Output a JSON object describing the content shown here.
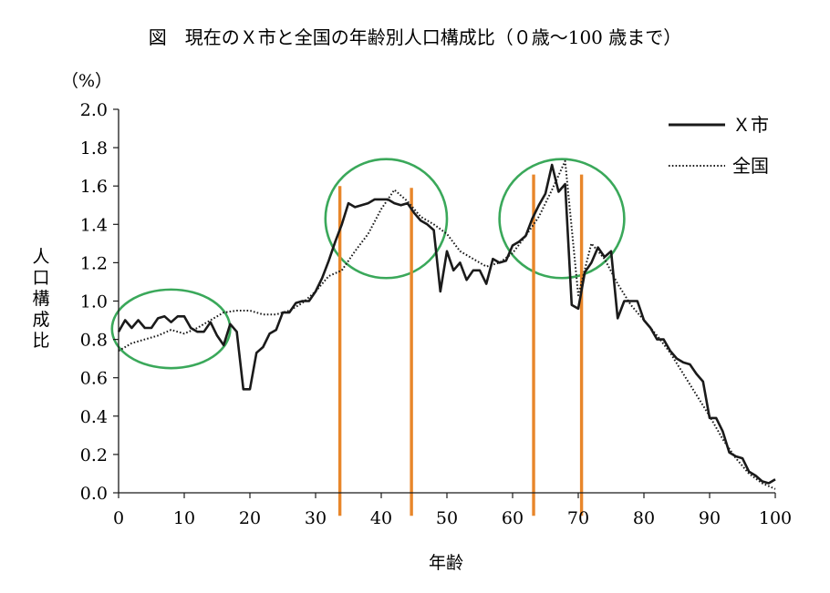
{
  "chart_data": {
    "type": "line",
    "title": "図　現在のＸ市と全国の年齢別人口構成比（０歳〜100 歳まで）",
    "xlabel": "年齢",
    "ylabel": "人口構成比",
    "yunit": "（%）",
    "xlim": [
      0,
      100
    ],
    "ylim": [
      0,
      2.0
    ],
    "xticks": [
      "0",
      "10",
      "20",
      "30",
      "40",
      "50",
      "60",
      "70",
      "80",
      "90",
      "100"
    ],
    "yticks": [
      "0.0",
      "0.2",
      "0.4",
      "0.6",
      "0.8",
      "1.0",
      "1.2",
      "1.4",
      "1.6",
      "1.8",
      "2.0"
    ],
    "grid": false,
    "legend_position": "top-right",
    "series": [
      {
        "name": "Ｘ市",
        "style": "solid",
        "color": "#1a1a1a",
        "x": [
          0,
          1,
          2,
          3,
          4,
          5,
          6,
          7,
          8,
          9,
          10,
          11,
          12,
          13,
          14,
          15,
          16,
          17,
          18,
          19,
          20,
          21,
          22,
          23,
          24,
          25,
          26,
          27,
          28,
          29,
          30,
          31,
          32,
          33,
          34,
          35,
          36,
          37,
          38,
          39,
          40,
          41,
          42,
          43,
          44,
          45,
          46,
          47,
          48,
          49,
          50,
          51,
          52,
          53,
          54,
          55,
          56,
          57,
          58,
          59,
          60,
          61,
          62,
          63,
          64,
          65,
          66,
          67,
          68,
          69,
          70,
          71,
          72,
          73,
          74,
          75,
          76,
          77,
          78,
          79,
          80,
          81,
          82,
          83,
          84,
          85,
          86,
          87,
          88,
          89,
          90,
          91,
          92,
          93,
          94,
          95,
          96,
          97,
          98,
          99,
          100
        ],
        "y": [
          0.84,
          0.9,
          0.86,
          0.9,
          0.86,
          0.86,
          0.91,
          0.92,
          0.89,
          0.92,
          0.92,
          0.86,
          0.84,
          0.84,
          0.89,
          0.82,
          0.77,
          0.88,
          0.84,
          0.54,
          0.54,
          0.73,
          0.76,
          0.83,
          0.85,
          0.94,
          0.94,
          0.99,
          1.0,
          1.0,
          1.05,
          1.12,
          1.21,
          1.31,
          1.4,
          1.51,
          1.49,
          1.5,
          1.51,
          1.53,
          1.53,
          1.53,
          1.51,
          1.5,
          1.51,
          1.46,
          1.42,
          1.4,
          1.37,
          1.05,
          1.26,
          1.16,
          1.2,
          1.11,
          1.16,
          1.16,
          1.09,
          1.22,
          1.2,
          1.21,
          1.29,
          1.31,
          1.34,
          1.43,
          1.5,
          1.56,
          1.71,
          1.57,
          1.61,
          0.98,
          0.96,
          1.15,
          1.2,
          1.28,
          1.23,
          1.26,
          0.91,
          1.0,
          1.0,
          1.0,
          0.9,
          0.86,
          0.8,
          0.8,
          0.74,
          0.7,
          0.68,
          0.67,
          0.62,
          0.58,
          0.39,
          0.39,
          0.32,
          0.21,
          0.19,
          0.18,
          0.11,
          0.09,
          0.06,
          0.05,
          0.07
        ]
      },
      {
        "name": "全国",
        "style": "dotted",
        "color": "#1a1a1a",
        "x": [
          0,
          2,
          4,
          6,
          8,
          10,
          12,
          14,
          16,
          18,
          20,
          22,
          24,
          26,
          28,
          30,
          32,
          34,
          36,
          38,
          40,
          42,
          44,
          46,
          48,
          50,
          52,
          54,
          56,
          58,
          60,
          62,
          64,
          66,
          68,
          70,
          72,
          74,
          76,
          78,
          80,
          82,
          84,
          86,
          88,
          90,
          92,
          94,
          96,
          98,
          100
        ],
        "y": [
          0.74,
          0.78,
          0.8,
          0.82,
          0.85,
          0.83,
          0.86,
          0.9,
          0.94,
          0.95,
          0.95,
          0.93,
          0.93,
          0.95,
          0.99,
          1.05,
          1.13,
          1.16,
          1.26,
          1.35,
          1.48,
          1.58,
          1.52,
          1.44,
          1.4,
          1.35,
          1.26,
          1.22,
          1.18,
          1.2,
          1.25,
          1.34,
          1.44,
          1.58,
          1.73,
          1.03,
          1.3,
          1.22,
          1.09,
          0.98,
          0.9,
          0.82,
          0.73,
          0.62,
          0.51,
          0.4,
          0.28,
          0.18,
          0.1,
          0.05,
          0.02
        ]
      }
    ],
    "annotations": [
      {
        "type": "circle",
        "color": "#3aa85a",
        "x_range": [
          -1,
          17
        ],
        "y_range": [
          0.65,
          1.06
        ]
      },
      {
        "type": "circle",
        "color": "#3aa85a",
        "x_range": [
          31.5,
          50
        ],
        "y_range": [
          1.12,
          1.74
        ]
      },
      {
        "type": "circle",
        "color": "#3aa85a",
        "x_range": [
          58,
          77
        ],
        "y_range": [
          1.12,
          1.74
        ]
      },
      {
        "type": "vline",
        "color": "#e8862a",
        "x": 33.7,
        "y_range": [
          -0.12,
          1.6
        ]
      },
      {
        "type": "vline",
        "color": "#e8862a",
        "x": 44.6,
        "y_range": [
          -0.12,
          1.59
        ]
      },
      {
        "type": "vline",
        "color": "#e8862a",
        "x": 63.2,
        "y_range": [
          -0.12,
          1.66
        ]
      },
      {
        "type": "vline",
        "color": "#e8862a",
        "x": 70.5,
        "y_range": [
          -0.12,
          1.66
        ]
      }
    ]
  }
}
